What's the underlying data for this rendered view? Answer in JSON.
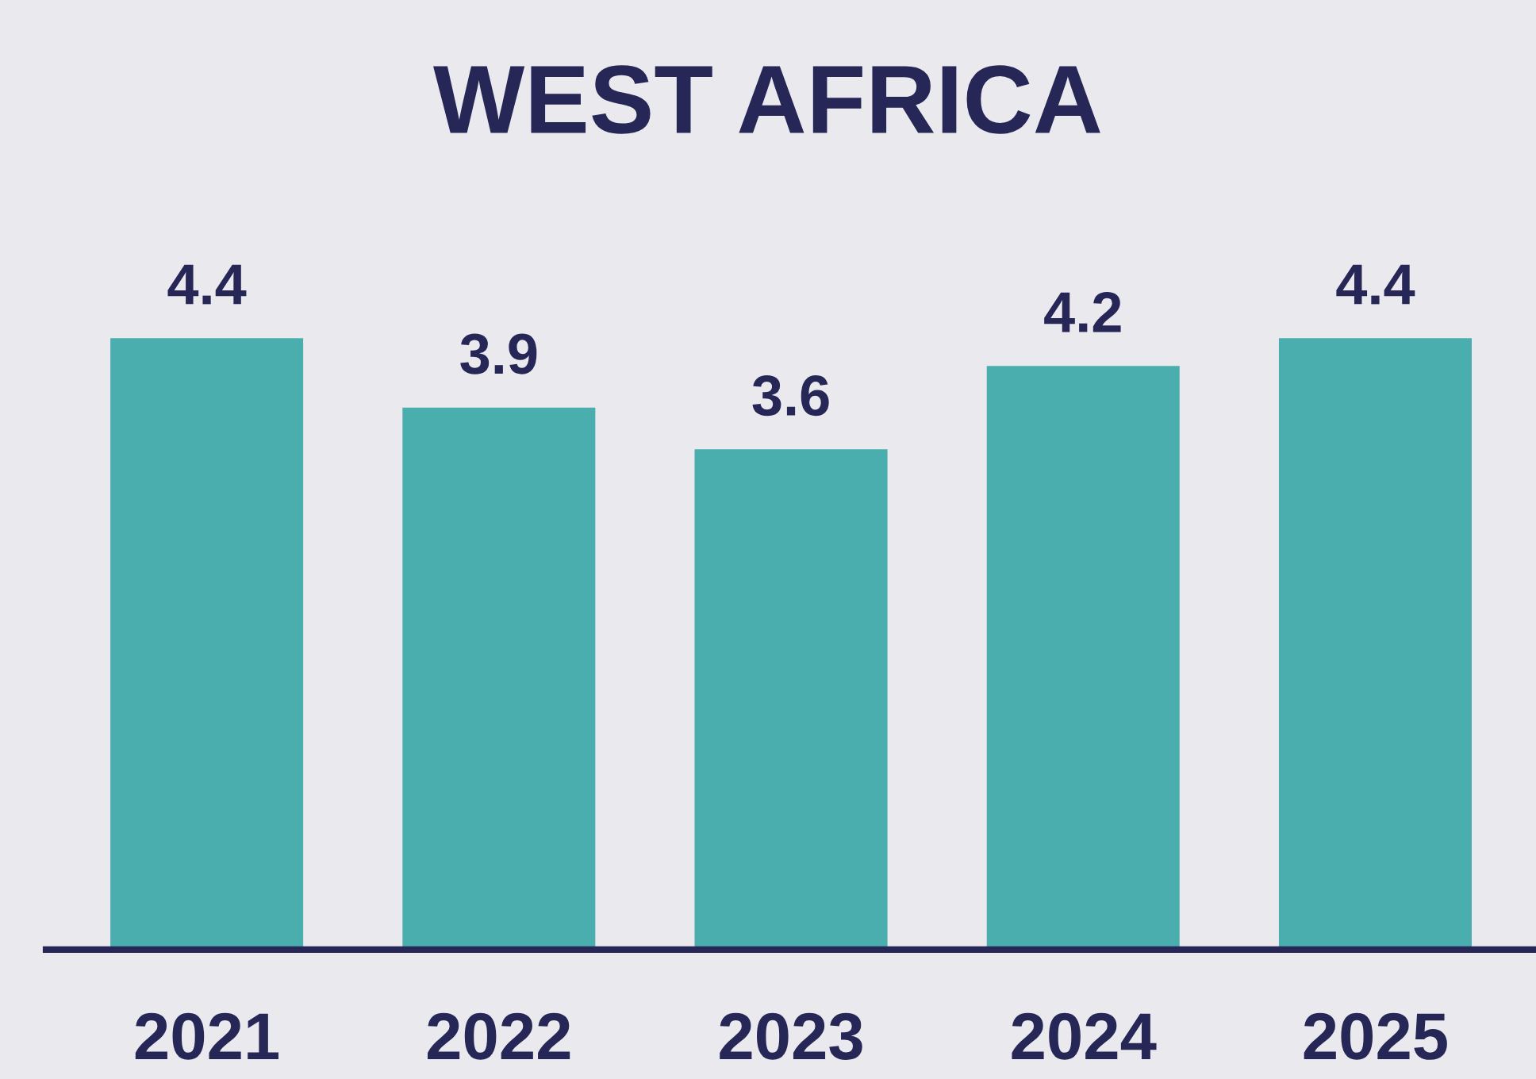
{
  "chart_data": {
    "type": "bar",
    "title": "WEST AFRICA",
    "categories": [
      "2021",
      "2022",
      "2023",
      "2024",
      "2025"
    ],
    "values": [
      4.4,
      3.9,
      3.6,
      4.2,
      4.4
    ],
    "color": "#4aaeae",
    "data_labels": true,
    "grid": false,
    "legend": false
  }
}
